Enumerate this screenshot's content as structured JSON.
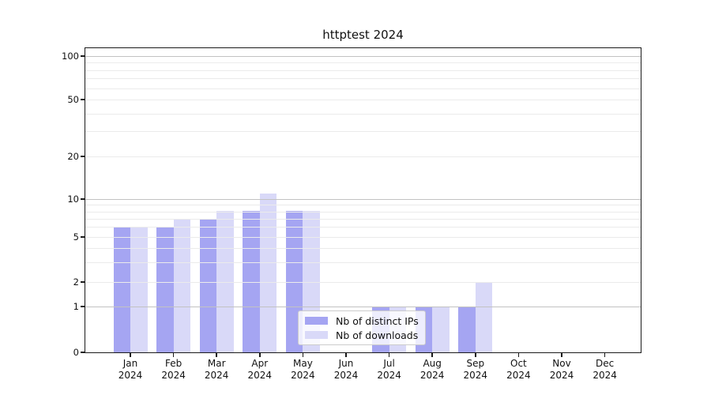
{
  "title": "httptest 2024",
  "chart_data": {
    "type": "bar",
    "title": "httptest 2024",
    "x_categories": [
      {
        "month": "Jan",
        "year": "2024"
      },
      {
        "month": "Feb",
        "year": "2024"
      },
      {
        "month": "Mar",
        "year": "2024"
      },
      {
        "month": "Apr",
        "year": "2024"
      },
      {
        "month": "May",
        "year": "2024"
      },
      {
        "month": "Jun",
        "year": "2024"
      },
      {
        "month": "Jul",
        "year": "2024"
      },
      {
        "month": "Aug",
        "year": "2024"
      },
      {
        "month": "Sep",
        "year": "2024"
      },
      {
        "month": "Oct",
        "year": "2024"
      },
      {
        "month": "Nov",
        "year": "2024"
      },
      {
        "month": "Dec",
        "year": "2024"
      }
    ],
    "series": [
      {
        "name": "Nb of distinct IPs",
        "color": "#a5a5f2",
        "values": [
          6,
          6,
          7,
          8,
          8,
          0,
          1,
          1,
          1,
          0,
          0,
          0
        ]
      },
      {
        "name": "Nb of downloads",
        "color": "#d9d9f8",
        "values": [
          6,
          7,
          8,
          11,
          8,
          0,
          1,
          1,
          2,
          0,
          0,
          0
        ]
      }
    ],
    "y_axis": {
      "scale": "log-like",
      "tick_labels": [
        "0",
        "1",
        "2",
        "5",
        "10",
        "20",
        "50",
        "100"
      ],
      "tick_values": [
        0,
        1,
        2,
        5,
        10,
        20,
        50,
        100
      ],
      "range": [
        0,
        115
      ],
      "grid": "horizontal major and minor, drawn above bars"
    },
    "legend_position": "lower center inside plot"
  },
  "legend": {
    "items": [
      {
        "label": "Nb of distinct IPs"
      },
      {
        "label": "Nb of downloads"
      }
    ]
  }
}
